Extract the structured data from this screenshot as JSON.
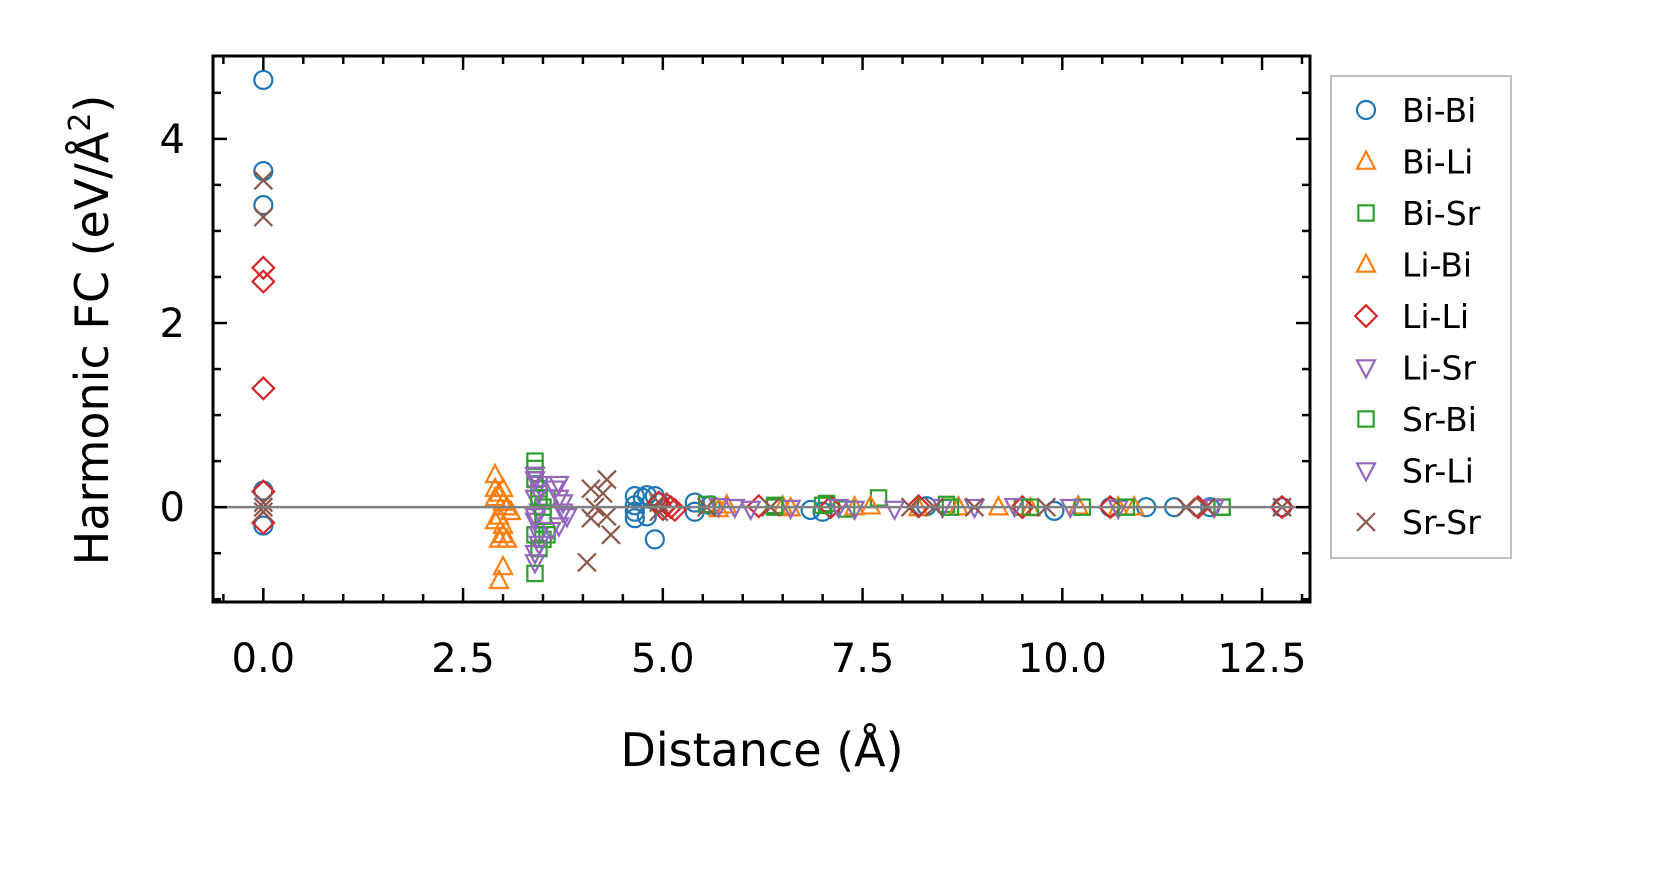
{
  "chart_data": {
    "type": "scatter",
    "title": "",
    "xlabel": "Distance (Å)",
    "ylabel_main": "Harmonic FC (eV/Å",
    "ylabel_sup": "2",
    "ylabel_close": ")",
    "xlim": [
      -0.63,
      13.1
    ],
    "ylim": [
      -1.03,
      4.9
    ],
    "xticks": [
      0.0,
      2.5,
      5.0,
      7.5,
      10.0,
      12.5
    ],
    "xtick_labels": [
      "0.0",
      "2.5",
      "5.0",
      "7.5",
      "10.0",
      "12.5"
    ],
    "yticks": [
      0,
      2,
      4
    ],
    "ytick_labels": [
      "0",
      "2",
      "4"
    ],
    "grid": false,
    "zero_line": true,
    "legend_placement": "outside-right",
    "series": [
      {
        "name": "Bi-Bi",
        "marker": "circle",
        "color": "#1f77b4",
        "points": [
          [
            0,
            4.64
          ],
          [
            0,
            3.65
          ],
          [
            0,
            3.28
          ],
          [
            0,
            0.18
          ],
          [
            0,
            -0.2
          ],
          [
            4.65,
            0.12
          ],
          [
            4.65,
            0.02
          ],
          [
            4.65,
            -0.05
          ],
          [
            4.65,
            -0.12
          ],
          [
            4.75,
            0.1
          ],
          [
            4.8,
            0.13
          ],
          [
            4.8,
            -0.1
          ],
          [
            4.9,
            0.12
          ],
          [
            4.9,
            -0.35
          ],
          [
            4.95,
            0.05
          ],
          [
            5.4,
            0.05
          ],
          [
            5.4,
            -0.05
          ],
          [
            5.6,
            0.02
          ],
          [
            6.85,
            -0.03
          ],
          [
            7.0,
            -0.05
          ],
          [
            8.3,
            0.01
          ],
          [
            9.9,
            -0.04
          ],
          [
            10.6,
            0.0
          ],
          [
            11.05,
            0.0
          ],
          [
            11.4,
            0.0
          ],
          [
            11.85,
            0.0
          ],
          [
            12.75,
            0.0
          ]
        ]
      },
      {
        "name": "Bi-Li",
        "marker": "triangle-up",
        "color": "#ff7f0e",
        "points": [
          [
            2.9,
            0.35
          ],
          [
            2.9,
            0.1
          ],
          [
            2.95,
            -0.1
          ],
          [
            2.95,
            -0.35
          ],
          [
            3.0,
            0.05
          ],
          [
            3.0,
            -0.2
          ],
          [
            3.05,
            -0.35
          ],
          [
            2.95,
            -0.8
          ],
          [
            3.0,
            -0.65
          ],
          [
            3.0,
            0.2
          ],
          [
            5.7,
            -0.02
          ],
          [
            6.5,
            0.01
          ],
          [
            7.4,
            0.0
          ],
          [
            8.2,
            -0.01
          ],
          [
            9.2,
            0.0
          ],
          [
            10.2,
            0.01
          ],
          [
            10.9,
            0.0
          ]
        ]
      },
      {
        "name": "Bi-Sr",
        "marker": "square",
        "color": "#2ca02c",
        "points": [
          [
            3.4,
            0.5
          ],
          [
            3.4,
            0.42
          ],
          [
            3.4,
            0.3
          ],
          [
            3.45,
            0.2
          ],
          [
            3.4,
            -0.3
          ],
          [
            3.45,
            -0.45
          ],
          [
            3.4,
            -0.72
          ],
          [
            3.5,
            -0.35
          ],
          [
            3.55,
            0.1
          ],
          [
            5.55,
            0.03
          ],
          [
            6.4,
            0.02
          ],
          [
            7.05,
            0.04
          ],
          [
            7.3,
            -0.02
          ],
          [
            7.7,
            0.1
          ],
          [
            8.55,
            0.03
          ],
          [
            9.5,
            0.0
          ],
          [
            10.25,
            0.0
          ],
          [
            12.0,
            0.0
          ]
        ]
      },
      {
        "name": "Li-Bi",
        "marker": "triangle-up",
        "color": "#ff7f0e",
        "points": [
          [
            2.9,
            0.2
          ],
          [
            2.95,
            0.15
          ],
          [
            3.05,
            0.0
          ],
          [
            2.9,
            -0.15
          ],
          [
            3.0,
            -0.3
          ],
          [
            3.1,
            -0.05
          ],
          [
            5.8,
            0.02
          ],
          [
            6.6,
            -0.01
          ],
          [
            7.6,
            0.01
          ],
          [
            8.7,
            0.0
          ],
          [
            9.6,
            -0.01
          ],
          [
            10.7,
            0.0
          ]
        ]
      },
      {
        "name": "Li-Li",
        "marker": "diamond",
        "color": "#d62728",
        "points": [
          [
            0,
            2.6
          ],
          [
            0,
            2.45
          ],
          [
            0,
            1.29
          ],
          [
            0,
            0.17
          ],
          [
            0,
            -0.17
          ],
          [
            4.95,
            0.05
          ],
          [
            5.0,
            -0.02
          ],
          [
            5.05,
            0.03
          ],
          [
            5.1,
            0.0
          ],
          [
            5.15,
            -0.03
          ],
          [
            6.2,
            0.01
          ],
          [
            7.1,
            0.0
          ],
          [
            8.2,
            0.01
          ],
          [
            9.5,
            0.0
          ],
          [
            10.6,
            0.0
          ],
          [
            11.7,
            0.0
          ],
          [
            12.75,
            0.0
          ]
        ]
      },
      {
        "name": "Li-Sr",
        "marker": "triangle-down",
        "color": "#9467bd",
        "points": [
          [
            3.4,
            0.35
          ],
          [
            3.45,
            0.25
          ],
          [
            3.4,
            0.1
          ],
          [
            3.45,
            -0.05
          ],
          [
            3.4,
            -0.15
          ],
          [
            3.45,
            -0.3
          ],
          [
            3.4,
            -0.5
          ],
          [
            3.65,
            0.2
          ],
          [
            3.7,
            0.1
          ],
          [
            3.75,
            -0.05
          ],
          [
            3.7,
            -0.2
          ],
          [
            5.9,
            0.0
          ],
          [
            6.6,
            -0.01
          ],
          [
            7.4,
            -0.02
          ],
          [
            8.5,
            0.0
          ],
          [
            9.4,
            0.01
          ],
          [
            10.7,
            -0.01
          ],
          [
            11.9,
            0.0
          ]
        ]
      },
      {
        "name": "Sr-Bi",
        "marker": "square",
        "color": "#2ca02c",
        "points": [
          [
            3.45,
            0.1
          ],
          [
            3.5,
            -0.1
          ],
          [
            3.55,
            -0.3
          ],
          [
            3.5,
            0.0
          ],
          [
            6.4,
            0.0
          ],
          [
            7.0,
            0.02
          ],
          [
            8.6,
            0.0
          ],
          [
            9.6,
            0.0
          ],
          [
            10.8,
            0.0
          ],
          [
            12.0,
            0.0
          ]
        ]
      },
      {
        "name": "Sr-Li",
        "marker": "triangle-down",
        "color": "#9467bd",
        "points": [
          [
            3.4,
            0.3
          ],
          [
            3.45,
            0.15
          ],
          [
            3.4,
            -0.1
          ],
          [
            3.45,
            -0.4
          ],
          [
            3.4,
            -0.6
          ],
          [
            3.7,
            0.25
          ],
          [
            3.75,
            0.05
          ],
          [
            3.8,
            -0.1
          ],
          [
            3.6,
            -0.25
          ],
          [
            5.7,
            0.01
          ],
          [
            6.1,
            -0.02
          ],
          [
            7.2,
            0.0
          ],
          [
            7.9,
            -0.02
          ],
          [
            8.9,
            0.0
          ],
          [
            10.1,
            0.0
          ],
          [
            11.9,
            0.0
          ]
        ]
      },
      {
        "name": "Sr-Sr",
        "marker": "x",
        "color": "#8c564b",
        "points": [
          [
            0,
            3.55
          ],
          [
            0,
            3.15
          ],
          [
            0,
            0.05
          ],
          [
            0,
            0.0
          ],
          [
            0,
            -0.05
          ],
          [
            4.1,
            0.2
          ],
          [
            4.15,
            0.0
          ],
          [
            4.1,
            -0.12
          ],
          [
            4.25,
            0.15
          ],
          [
            4.3,
            0.3
          ],
          [
            4.3,
            -0.1
          ],
          [
            4.35,
            -0.3
          ],
          [
            4.05,
            -0.6
          ],
          [
            4.95,
            0.05
          ],
          [
            4.95,
            -0.05
          ],
          [
            5.55,
            0.0
          ],
          [
            6.35,
            0.0
          ],
          [
            8.1,
            0.0
          ],
          [
            8.4,
            0.0
          ],
          [
            8.9,
            0.0
          ],
          [
            9.8,
            0.0
          ],
          [
            11.55,
            0.0
          ],
          [
            11.8,
            0.0
          ],
          [
            12.75,
            0.0
          ]
        ]
      }
    ]
  }
}
